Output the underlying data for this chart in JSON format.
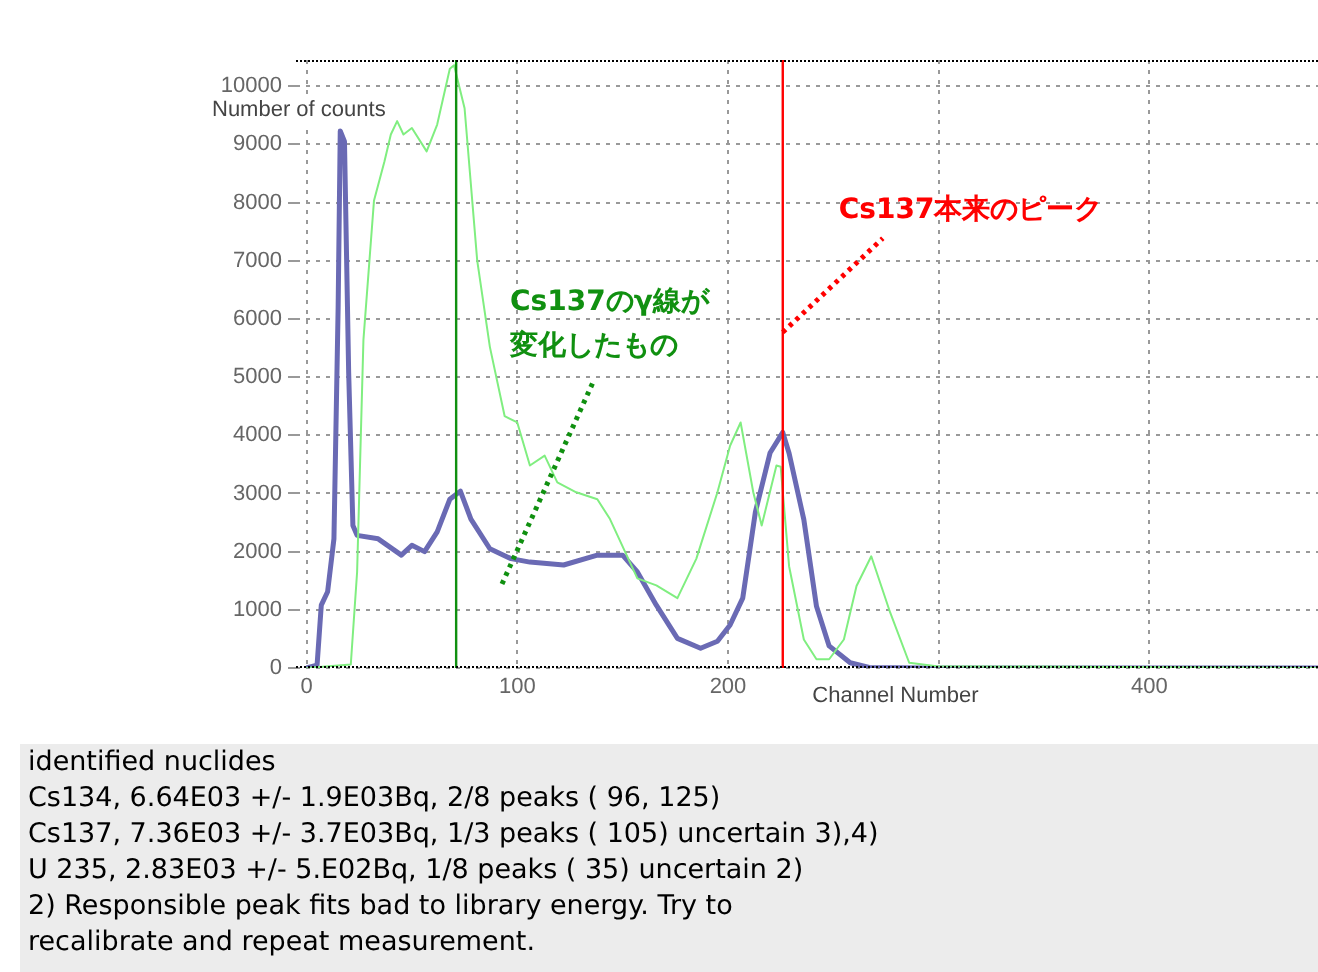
{
  "chart_data": {
    "type": "line",
    "xlabel": "Channel Number",
    "ylabel": "Number of counts",
    "xlim": [
      -5,
      480
    ],
    "xticks": [
      0,
      100,
      200,
      {
        "value": 300,
        "label": null
      },
      400
    ],
    "ylim": [
      0,
      10450
    ],
    "yticks": [
      0,
      1000,
      2000,
      3000,
      4000,
      5000,
      6000,
      7000,
      8000,
      9000,
      10000
    ],
    "grid": true,
    "legend": false,
    "marker": "none",
    "line_style": "solid",
    "series": [
      {
        "color": "#80ee80",
        "x": [
          0,
          21,
          24,
          27,
          32,
          37,
          40,
          43,
          46,
          50,
          57,
          62,
          68,
          70,
          75,
          81,
          87,
          94,
          100,
          106,
          113,
          119,
          128,
          138,
          144,
          157,
          166,
          176,
          185,
          195,
          201,
          206,
          212,
          216,
          223,
          225,
          229,
          236,
          242,
          248,
          255,
          261,
          268,
          277,
          286,
          299,
          480
        ],
        "values": [
          0,
          60,
          1650,
          5640,
          8030,
          8710,
          9170,
          9400,
          9170,
          9280,
          8880,
          9340,
          10300,
          10360,
          9620,
          7000,
          5520,
          4330,
          4220,
          3480,
          3650,
          3190,
          3020,
          2900,
          2560,
          1540,
          1420,
          1200,
          1880,
          3020,
          3820,
          4220,
          3020,
          2450,
          3480,
          3460,
          1750,
          490,
          150,
          150,
          490,
          1410,
          1920,
          950,
          90,
          30,
          0
        ]
      },
      {
        "color": "#6a6ab4",
        "x": [
          0,
          5,
          7,
          10,
          13,
          15,
          16,
          18,
          20,
          22,
          24,
          34,
          45,
          50,
          56,
          62,
          68,
          73,
          78,
          87,
          97,
          106,
          122,
          138,
          150,
          157,
          166,
          176,
          187,
          195,
          201,
          207,
          213,
          220,
          226,
          229,
          236,
          242,
          248,
          258,
          267,
          293,
          480
        ],
        "values": [
          0,
          50,
          1080,
          1310,
          2220,
          6200,
          9230,
          9050,
          5070,
          2450,
          2280,
          2220,
          1940,
          2110,
          2000,
          2340,
          2900,
          3040,
          2560,
          2050,
          1880,
          1820,
          1770,
          1940,
          1940,
          1650,
          1080,
          510,
          340,
          460,
          740,
          1200,
          2680,
          3700,
          4050,
          3690,
          2550,
          1060,
          380,
          90,
          10,
          0,
          0
        ]
      }
    ],
    "ref_lines": [
      {
        "axis": "x",
        "value": 71,
        "color": "#109010"
      },
      {
        "axis": "x",
        "value": 226,
        "color": "#ff0000"
      }
    ],
    "annotations": [
      "Cs137のγ線が変化したもの",
      {
        "text": "Cs137本来のピーク",
        "x": 226,
        "y": 5770
      },
      "identified nuclides",
      "Cs134, 6.64E03 +/- 1.9E03Bq, 2/8 peaks ( 96, 125)",
      "Cs137, 7.36E03 +/- 3.7E03Bq, 1/3 peaks ( 105) uncertain 3),4)",
      "U 235, 2.83E03 +/- 5.E02Bq, 1/8 peaks ( 35) uncertain 2)",
      "2) Responsible peak fits bad to library energy. Try to",
      "recalibrate and repeat measurement."
    ]
  }
}
